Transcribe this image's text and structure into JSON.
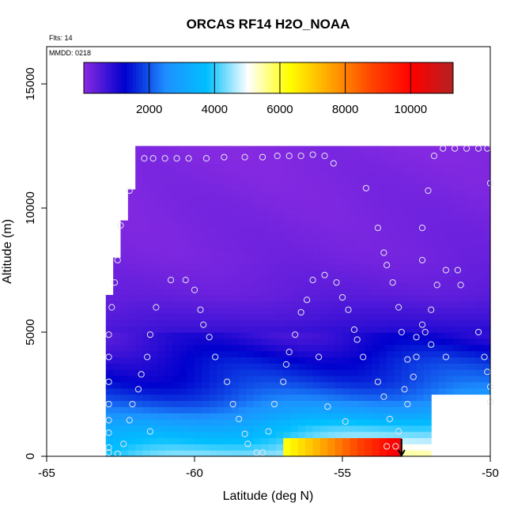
{
  "chart_data": {
    "type": "heatmap",
    "title": "ORCAS RF14 H2O_NOAA",
    "xlabel": "Latitude (deg N)",
    "ylabel": "Altitude (m)",
    "annotations": [
      "Flts: 14",
      "MMDD: 0218"
    ],
    "xlim": [
      -65,
      -50
    ],
    "ylim": [
      0,
      16500
    ],
    "x_ticks": [
      -65,
      -60,
      -55,
      -50
    ],
    "x_tick_labels": [
      "-65",
      "-60",
      "-55",
      "-50"
    ],
    "y_ticks": [
      0,
      5000,
      10000,
      15000
    ],
    "y_tick_labels": [
      "0",
      "5000",
      "10000",
      "15000"
    ],
    "colorbar": {
      "range": [
        0,
        11300
      ],
      "ticks": [
        2000,
        4000,
        6000,
        8000,
        10000
      ],
      "tick_labels": [
        "2000",
        "4000",
        "6000",
        "8000",
        "10000"
      ],
      "colors": [
        "#8a2be2",
        "#0000cd",
        "#1e90ff",
        "#00bfff",
        "#ffffff",
        "#ffff00",
        "#ffa500",
        "#ff4500",
        "#ff0000",
        "#b22222"
      ]
    },
    "field_extent": {
      "lat_min": -63.0,
      "lat_max": -50.0,
      "top_profile": [
        {
          "lat": -63.0,
          "alt": 6300
        },
        {
          "lat": -62.7,
          "alt": 7900
        },
        {
          "lat": -62.5,
          "alt": 9300
        },
        {
          "lat": -62.2,
          "alt": 10700
        },
        {
          "lat": -62.1,
          "alt": 12000
        },
        {
          "lat": -61.9,
          "alt": 12300
        },
        {
          "lat": -52.0,
          "alt": 12300
        },
        {
          "lat": -51.8,
          "alt": 12500
        },
        {
          "lat": -50.0,
          "alt": 12500
        }
      ],
      "missing_region": {
        "lat_from": -52.0,
        "lat_to": -50.0,
        "alt_max": 2600
      }
    },
    "band_profile": [
      {
        "alt": 0,
        "value": 4600
      },
      {
        "alt": 400,
        "value": 4200
      },
      {
        "alt": 800,
        "value": 3800
      },
      {
        "alt": 1300,
        "value": 3300
      },
      {
        "alt": 1800,
        "value": 2600
      },
      {
        "alt": 2400,
        "value": 2000
      },
      {
        "alt": 3000,
        "value": 1600
      },
      {
        "alt": 3800,
        "value": 1300
      },
      {
        "alt": 4600,
        "value": 900
      },
      {
        "alt": 5500,
        "value": 600
      },
      {
        "alt": 6500,
        "value": 350
      },
      {
        "alt": 8000,
        "value": 200
      },
      {
        "alt": 12500,
        "value": 80
      }
    ],
    "hotspot": {
      "lat_from": -57.2,
      "lat_to": -53.0,
      "alt_from": 0,
      "alt_to": 700,
      "value_min": 6000,
      "value_max": 10500
    },
    "markers": {
      "flight_end": {
        "lat": -53.0,
        "alt": 0
      }
    },
    "points": [
      {
        "lat": -62.9,
        "alt": 150
      },
      {
        "lat": -62.9,
        "alt": 350
      },
      {
        "lat": -62.6,
        "alt": 100
      },
      {
        "lat": -62.4,
        "alt": 500
      },
      {
        "lat": -62.9,
        "alt": 950
      },
      {
        "lat": -62.9,
        "alt": 1450
      },
      {
        "lat": -62.9,
        "alt": 2100
      },
      {
        "lat": -62.9,
        "alt": 3000
      },
      {
        "lat": -62.9,
        "alt": 4000
      },
      {
        "lat": -62.9,
        "alt": 4900
      },
      {
        "lat": -62.8,
        "alt": 6000
      },
      {
        "lat": -62.7,
        "alt": 7000
      },
      {
        "lat": -62.6,
        "alt": 7900
      },
      {
        "lat": -62.5,
        "alt": 9300
      },
      {
        "lat": -62.2,
        "alt": 10700
      },
      {
        "lat": -62.2,
        "alt": 1450
      },
      {
        "lat": -61.9,
        "alt": 2700
      },
      {
        "lat": -61.8,
        "alt": 3300
      },
      {
        "lat": -61.6,
        "alt": 4000
      },
      {
        "lat": -62.1,
        "alt": 2100
      },
      {
        "lat": -61.5,
        "alt": 1000
      },
      {
        "lat": -61.7,
        "alt": 12000
      },
      {
        "lat": -61.4,
        "alt": 12000
      },
      {
        "lat": -61.0,
        "alt": 12000
      },
      {
        "lat": -60.6,
        "alt": 12000
      },
      {
        "lat": -60.2,
        "alt": 12000
      },
      {
        "lat": -59.6,
        "alt": 12000
      },
      {
        "lat": -59.0,
        "alt": 12050
      },
      {
        "lat": -58.3,
        "alt": 12050
      },
      {
        "lat": -57.7,
        "alt": 12050
      },
      {
        "lat": -57.2,
        "alt": 12100
      },
      {
        "lat": -56.8,
        "alt": 12100
      },
      {
        "lat": -56.4,
        "alt": 12100
      },
      {
        "lat": -56.0,
        "alt": 12150
      },
      {
        "lat": -55.6,
        "alt": 12100
      },
      {
        "lat": -55.3,
        "alt": 11800
      },
      {
        "lat": -61.5,
        "alt": 4900
      },
      {
        "lat": -61.3,
        "alt": 6000
      },
      {
        "lat": -60.8,
        "alt": 7100
      },
      {
        "lat": -60.3,
        "alt": 7100
      },
      {
        "lat": -60.0,
        "alt": 6700
      },
      {
        "lat": -59.8,
        "alt": 5900
      },
      {
        "lat": -59.7,
        "alt": 5300
      },
      {
        "lat": -59.5,
        "alt": 4800
      },
      {
        "lat": -59.3,
        "alt": 4000
      },
      {
        "lat": -58.9,
        "alt": 3000
      },
      {
        "lat": -58.7,
        "alt": 2100
      },
      {
        "lat": -58.5,
        "alt": 1500
      },
      {
        "lat": -58.3,
        "alt": 900
      },
      {
        "lat": -58.2,
        "alt": 500
      },
      {
        "lat": -57.9,
        "alt": 150
      },
      {
        "lat": -57.7,
        "alt": 150
      },
      {
        "lat": -57.5,
        "alt": 1000
      },
      {
        "lat": -57.3,
        "alt": 2100
      },
      {
        "lat": -57.0,
        "alt": 3000
      },
      {
        "lat": -56.9,
        "alt": 3700
      },
      {
        "lat": -56.8,
        "alt": 4200
      },
      {
        "lat": -56.6,
        "alt": 4900
      },
      {
        "lat": -56.4,
        "alt": 5800
      },
      {
        "lat": -56.2,
        "alt": 6300
      },
      {
        "lat": -56.0,
        "alt": 7100
      },
      {
        "lat": -55.6,
        "alt": 7300
      },
      {
        "lat": -55.2,
        "alt": 7000
      },
      {
        "lat": -55.0,
        "alt": 6400
      },
      {
        "lat": -54.8,
        "alt": 5900
      },
      {
        "lat": -54.6,
        "alt": 5100
      },
      {
        "lat": -54.5,
        "alt": 4700
      },
      {
        "lat": -54.3,
        "alt": 4000
      },
      {
        "lat": -54.2,
        "alt": 10800
      },
      {
        "lat": -53.8,
        "alt": 9200
      },
      {
        "lat": -53.6,
        "alt": 8200
      },
      {
        "lat": -53.5,
        "alt": 7700
      },
      {
        "lat": -53.3,
        "alt": 7000
      },
      {
        "lat": -53.1,
        "alt": 6000
      },
      {
        "lat": -53.0,
        "alt": 5000
      },
      {
        "lat": -53.8,
        "alt": 3000
      },
      {
        "lat": -53.6,
        "alt": 2400
      },
      {
        "lat": -53.4,
        "alt": 1500
      },
      {
        "lat": -53.1,
        "alt": 1000
      },
      {
        "lat": -52.8,
        "alt": 2100
      },
      {
        "lat": -52.6,
        "alt": 3200
      },
      {
        "lat": -52.5,
        "alt": 4000
      },
      {
        "lat": -52.2,
        "alt": 5000
      },
      {
        "lat": -52.0,
        "alt": 5900
      },
      {
        "lat": -51.8,
        "alt": 6900
      },
      {
        "lat": -51.5,
        "alt": 7500
      },
      {
        "lat": -51.1,
        "alt": 7500
      },
      {
        "lat": -51.0,
        "alt": 6900
      },
      {
        "lat": -52.3,
        "alt": 5300
      },
      {
        "lat": -52.5,
        "alt": 4800
      },
      {
        "lat": -52.0,
        "alt": 4500
      },
      {
        "lat": -51.5,
        "alt": 4000
      },
      {
        "lat": -52.8,
        "alt": 3900
      },
      {
        "lat": -52.9,
        "alt": 2700
      },
      {
        "lat": -52.3,
        "alt": 9200
      },
      {
        "lat": -52.1,
        "alt": 10700
      },
      {
        "lat": -51.9,
        "alt": 12100
      },
      {
        "lat": -51.6,
        "alt": 12400
      },
      {
        "lat": -51.2,
        "alt": 12400
      },
      {
        "lat": -50.8,
        "alt": 12400
      },
      {
        "lat": -50.4,
        "alt": 12400
      },
      {
        "lat": -50.1,
        "alt": 12400
      },
      {
        "lat": -50.4,
        "alt": 5000
      },
      {
        "lat": -50.2,
        "alt": 4000
      },
      {
        "lat": -50.1,
        "alt": 3400
      },
      {
        "lat": -50.0,
        "alt": 2800
      },
      {
        "lat": -50.0,
        "alt": 2200
      },
      {
        "lat": -50.0,
        "alt": 11000
      },
      {
        "lat": -55.8,
        "alt": 4000
      },
      {
        "lat": -52.3,
        "alt": 7900
      },
      {
        "lat": -55.5,
        "alt": 2000
      },
      {
        "lat": -54.9,
        "alt": 1400
      },
      {
        "lat": -53.5,
        "alt": 400
      },
      {
        "lat": -53.2,
        "alt": 400
      }
    ]
  }
}
